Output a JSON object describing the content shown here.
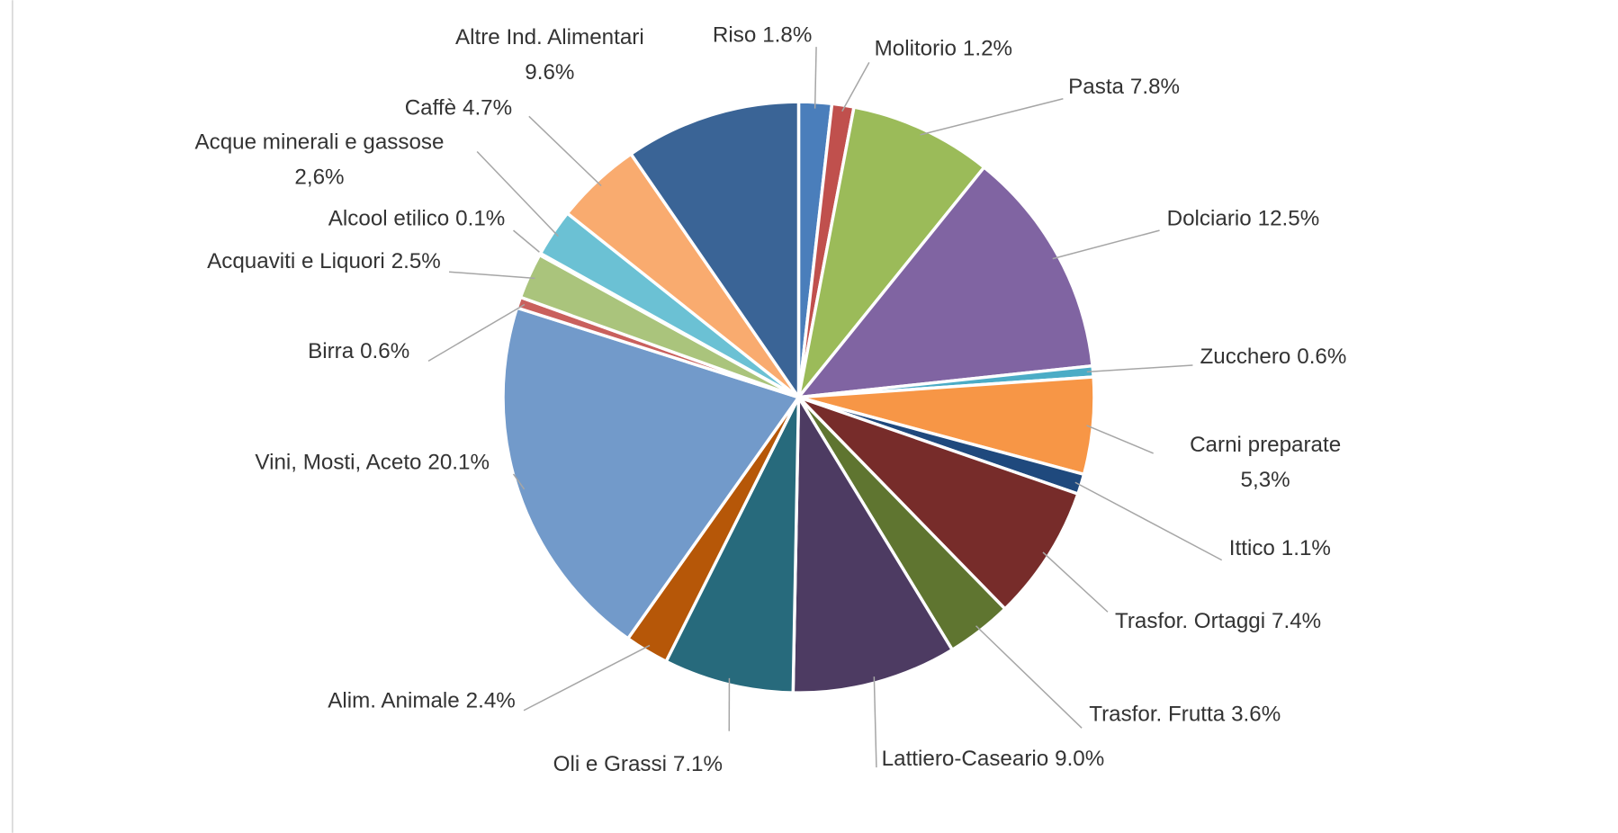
{
  "chart_data": {
    "type": "pie",
    "categories": [
      "Riso",
      "Molitorio",
      "Pasta",
      "Dolciario",
      "Zucchero",
      "Carni preparate",
      "Ittico",
      "Trasfor. Ortaggi",
      "Trasfor. Frutta",
      "Lattiero-Caseario",
      "Oli e Grassi",
      "Alim. Animale",
      "Vini, Mosti, Aceto",
      "Birra",
      "Acquaviti e Liquori",
      "Alcool etilico",
      "Acque minerali e gassose",
      "Caffè",
      "Altre Ind. Alimentari"
    ],
    "values": [
      1.8,
      1.2,
      7.8,
      12.5,
      0.6,
      5.3,
      1.1,
      7.4,
      3.6,
      9.0,
      7.1,
      2.4,
      20.1,
      0.6,
      2.5,
      0.1,
      2.6,
      4.7,
      9.6
    ],
    "value_labels": [
      "1.8%",
      "1.2%",
      "7.8%",
      "12.5%",
      "0.6%",
      "5,3%",
      "1.1%",
      "7.4%",
      "3.6%",
      "9.0%",
      "7.1%",
      "2.4%",
      "20.1%",
      "0.6%",
      "2.5%",
      "0.1%",
      "2,6%",
      "4.7%",
      "9.6%"
    ],
    "colors": [
      "#4a7ebb",
      "#c0504d",
      "#9bbb59",
      "#8064a2",
      "#4bacc6",
      "#f79646",
      "#1f497d",
      "#772c2a",
      "#5f7530",
      "#4d3b62",
      "#276a7c",
      "#b65708",
      "#729aca",
      "#c9605d",
      "#aac47c",
      "#8d79b3",
      "#6bc1d4",
      "#f9ab6f",
      "#3a6496"
    ]
  }
}
